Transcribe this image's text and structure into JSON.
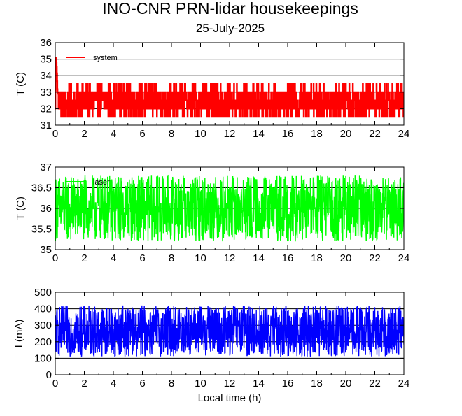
{
  "title": "INO-CNR PRN-lidar housekeepings",
  "subtitle": "25-July-2025",
  "x_axis_label": "Local time (h)",
  "chart_data": [
    {
      "type": "line",
      "xlabel": "",
      "ylabel": "T (C)",
      "xlim": [
        0,
        24
      ],
      "ylim": [
        31,
        36
      ],
      "x_ticks": [
        "0",
        "2",
        "4",
        "6",
        "8",
        "10",
        "12",
        "14",
        "16",
        "18",
        "20",
        "22",
        "24"
      ],
      "y_ticks": [
        "31",
        "32",
        "33",
        "34",
        "35",
        "36"
      ],
      "grid": true,
      "legend_placement": "top-left",
      "series": [
        {
          "name": "system",
          "color": "#ff0000",
          "x": [
            0,
            0.05,
            0.1,
            0.15,
            0.5,
            1,
            1.5,
            2,
            2.5,
            3,
            3.5,
            4,
            4.5,
            5,
            5.5,
            6,
            6.5,
            7,
            7.5,
            8,
            8.5,
            9,
            9.5,
            10,
            10.5,
            11,
            11.5,
            12,
            12.5,
            13,
            13.5,
            14,
            14.5,
            15,
            15.5,
            16,
            16.5,
            17,
            17.5,
            18,
            18.5,
            19,
            19.5,
            20,
            20.5,
            21,
            21.5,
            22,
            22.5,
            23,
            23.5,
            24
          ],
          "values": [
            32,
            35.2,
            34.5,
            33,
            32.2,
            32.3,
            32.6,
            32.4,
            32.6,
            32.5,
            32.7,
            32.4,
            32.5,
            32.6,
            32.4,
            32.5,
            32.7,
            32.8,
            32.4,
            32.6,
            32.5,
            32.6,
            32.5,
            32.8,
            32.6,
            32.5,
            32.4,
            32.7,
            32.5,
            32.6,
            32.4,
            32.6,
            32.7,
            32.6,
            32.4,
            32.6,
            32.5,
            32.6,
            32.5,
            32.6,
            32.4,
            32.6,
            32.5,
            32.6,
            32.5,
            32.7,
            32.6,
            32.5,
            32.6,
            32.5,
            32.6,
            32.5
          ],
          "range_low": 31.5,
          "range_high": 33.5
        }
      ]
    },
    {
      "type": "line",
      "xlabel": "",
      "ylabel": "T (C)",
      "xlim": [
        0,
        24
      ],
      "ylim": [
        35,
        37
      ],
      "x_ticks": [
        "0",
        "2",
        "4",
        "6",
        "8",
        "10",
        "12",
        "14",
        "16",
        "18",
        "20",
        "22",
        "24"
      ],
      "y_ticks": [
        "35",
        "35.5",
        "36",
        "36.5",
        "37"
      ],
      "grid": true,
      "legend_placement": "top-left",
      "series": [
        {
          "name": "laser",
          "color": "#00ff00",
          "x": [
            0,
            24
          ],
          "values": [
            36.0,
            36.0
          ],
          "range_low": 35.2,
          "range_high": 36.8
        }
      ]
    },
    {
      "type": "line",
      "xlabel": "Local time (h)",
      "ylabel": "I (mA)",
      "xlim": [
        0,
        24
      ],
      "ylim": [
        0,
        500
      ],
      "x_ticks": [
        "0",
        "2",
        "4",
        "6",
        "8",
        "10",
        "12",
        "14",
        "16",
        "18",
        "20",
        "22",
        "24"
      ],
      "y_ticks": [
        "0",
        "100",
        "200",
        "300",
        "400",
        "500"
      ],
      "grid": true,
      "legend_placement": "top-left",
      "series": [
        {
          "name": "",
          "color": "#0000ff",
          "x": [
            0,
            24
          ],
          "values": [
            280,
            280
          ],
          "range_low": 110,
          "range_high": 420
        }
      ]
    }
  ]
}
